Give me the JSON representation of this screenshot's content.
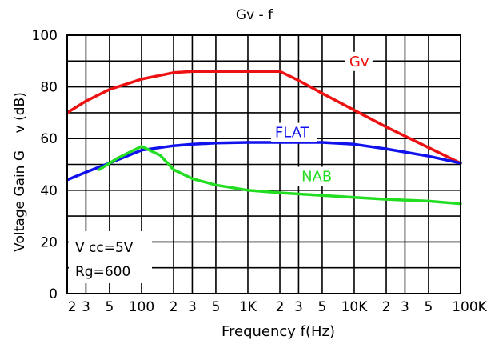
{
  "chart_data": {
    "type": "line",
    "title": "Gv - f",
    "xlabel": "Frequency f(Hz)",
    "ylabel": "Voltage Gain G    v (dB)",
    "x_scale": "log",
    "xlim": [
      20,
      100000
    ],
    "ylim": [
      0,
      100
    ],
    "grid": true,
    "x_tick_labels": [
      {
        "x": 20,
        "label": "2"
      },
      {
        "x": 30,
        "label": "3"
      },
      {
        "x": 50,
        "label": "5"
      },
      {
        "x": 100,
        "label": "100"
      },
      {
        "x": 200,
        "label": "2"
      },
      {
        "x": 300,
        "label": "3"
      },
      {
        "x": 500,
        "label": "5"
      },
      {
        "x": 1000,
        "label": "1K"
      },
      {
        "x": 2000,
        "label": "2"
      },
      {
        "x": 3000,
        "label": "3"
      },
      {
        "x": 5000,
        "label": "5"
      },
      {
        "x": 10000,
        "label": "10K"
      },
      {
        "x": 20000,
        "label": "2"
      },
      {
        "x": 30000,
        "label": "3"
      },
      {
        "x": 50000,
        "label": "5"
      },
      {
        "x": 100000,
        "label": "100K"
      }
    ],
    "y_tick_labels": [
      {
        "y": 0,
        "label": "0"
      },
      {
        "y": 20,
        "label": "20"
      },
      {
        "y": 40,
        "label": "40"
      },
      {
        "y": 60,
        "label": "60"
      },
      {
        "y": 80,
        "label": "80"
      },
      {
        "y": 100,
        "label": "100"
      }
    ],
    "series": [
      {
        "name": "Gv",
        "color": "#ee1111",
        "label_at": [
          9000,
          88
        ],
        "x": [
          20,
          30,
          50,
          100,
          200,
          300,
          500,
          1000,
          2000,
          3000,
          5000,
          10000,
          20000,
          50000,
          100000
        ],
        "y": [
          70,
          74.5,
          79,
          83,
          85.5,
          86,
          86,
          86,
          86,
          82.5,
          77.5,
          71,
          64.5,
          56.5,
          50.5
        ]
      },
      {
        "name": "FLAT",
        "color": "#1111ee",
        "label_at": [
          1800,
          60.5
        ],
        "x": [
          20,
          30,
          50,
          100,
          200,
          300,
          500,
          1000,
          2000,
          5000,
          10000,
          20000,
          50000,
          100000
        ],
        "y": [
          44,
          47,
          50.5,
          55.5,
          57.2,
          57.8,
          58.3,
          58.5,
          58.5,
          58.5,
          57.8,
          56,
          53.2,
          50.5
        ]
      },
      {
        "name": "NAB",
        "color": "#22dd22",
        "label_at": [
          3200,
          43.5
        ],
        "x": [
          40,
          60,
          100,
          150,
          200,
          300,
          500,
          1000,
          2000,
          5000,
          10000,
          20000,
          50000,
          100000
        ],
        "y": [
          48,
          52.5,
          57,
          53.5,
          48,
          44.5,
          42,
          40,
          39,
          38,
          37.2,
          36.5,
          35.8,
          34.8
        ]
      }
    ],
    "annotations": [
      "V cc=5V",
      "Rg=600"
    ]
  }
}
